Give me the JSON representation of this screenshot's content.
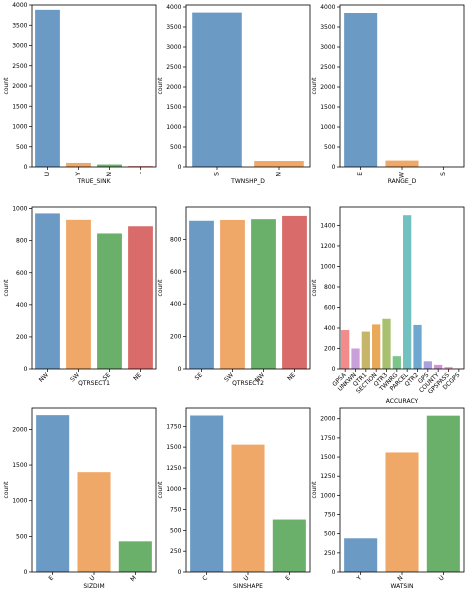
{
  "chart_data": [
    {
      "type": "bar",
      "categories": [
        "U",
        "Y",
        "N",
        "-"
      ],
      "values": [
        3880,
        100,
        60,
        20
      ],
      "xlabel": "TRUE_SINK",
      "ylabel": "count",
      "ylim": [
        0,
        4000
      ],
      "yticks": [
        0,
        500,
        1000,
        1500,
        2000,
        2500,
        3000,
        3500,
        4000
      ],
      "colors": [
        "#6b9ac4",
        "#f0a868",
        "#6aaf6a",
        "#d96b6b"
      ]
    },
    {
      "type": "bar",
      "categories": [
        "S",
        "N"
      ],
      "values": [
        3860,
        150
      ],
      "xlabel": "TWNSHP_D",
      "ylabel": "count",
      "ylim": [
        0,
        4050
      ],
      "yticks": [
        0,
        500,
        1000,
        1500,
        2000,
        2500,
        3000,
        3500,
        4000
      ],
      "colors": [
        "#6b9ac4",
        "#f0a868"
      ]
    },
    {
      "type": "bar",
      "categories": [
        "E",
        "W",
        "S"
      ],
      "values": [
        3850,
        160,
        3
      ],
      "xlabel": "RANGE_D",
      "ylabel": "count",
      "ylim": [
        0,
        4050
      ],
      "yticks": [
        0,
        500,
        1000,
        1500,
        2000,
        2500,
        3000,
        3500,
        4000
      ],
      "colors": [
        "#6b9ac4",
        "#f0a868",
        "#6aaf6a"
      ]
    },
    {
      "type": "bar",
      "categories": [
        "NW",
        "SW",
        "SE",
        "NE"
      ],
      "values": [
        970,
        930,
        845,
        890
      ],
      "xlabel": "QTRSECT1",
      "ylabel": "count",
      "ylim": [
        0,
        1010
      ],
      "yticks": [
        0,
        200,
        400,
        600,
        800,
        1000
      ],
      "colors": [
        "#6b9ac4",
        "#f0a868",
        "#6aaf6a",
        "#d96b6b"
      ]
    },
    {
      "type": "bar",
      "categories": [
        "SE",
        "SW",
        "NW",
        "NE"
      ],
      "values": [
        915,
        920,
        925,
        945
      ],
      "xlabel": "QTRSECT2",
      "ylabel": "count",
      "ylim": [
        0,
        1000
      ],
      "yticks": [
        0,
        200,
        400,
        600,
        800
      ],
      "colors": [
        "#6b9ac4",
        "#f0a868",
        "#6aaf6a",
        "#d96b6b"
      ]
    },
    {
      "type": "bar",
      "categories": [
        "GPSA",
        "UNKWN",
        "QTR1",
        "SECTION",
        "QTR3",
        "TWNRG",
        "PARCEL",
        "QTR2",
        "GPS",
        "COUNTY",
        "GPSPASS",
        "DCGPS"
      ],
      "values": [
        380,
        200,
        365,
        435,
        490,
        125,
        1500,
        430,
        75,
        40,
        20,
        5
      ],
      "xlabel": "ACCURACY",
      "ylabel": "count",
      "ylim": [
        0,
        1580
      ],
      "yticks": [
        0,
        200,
        400,
        600,
        800,
        1000,
        1200,
        1400
      ],
      "colors": [
        "#f28c8c",
        "#c9a0d9",
        "#c7b66a",
        "#e8a95a",
        "#a8c070",
        "#7cc48a",
        "#72c0c0",
        "#6ea8d0",
        "#a9a0e0",
        "#d38fd8",
        "#f2a0c8",
        "#f7b8b8"
      ]
    },
    {
      "type": "bar",
      "categories": [
        "E",
        "U",
        "M"
      ],
      "values": [
        2200,
        1400,
        430
      ],
      "xlabel": "SIZDIM",
      "ylabel": "count",
      "ylim": [
        0,
        2300
      ],
      "yticks": [
        0,
        500,
        1000,
        1500,
        2000
      ],
      "colors": [
        "#6b9ac4",
        "#f0a868",
        "#6aaf6a"
      ]
    },
    {
      "type": "bar",
      "categories": [
        "C",
        "U",
        "E"
      ],
      "values": [
        1880,
        1530,
        630
      ],
      "xlabel": "SINSHAPE",
      "ylabel": "count",
      "ylim": [
        0,
        1970
      ],
      "yticks": [
        0,
        250,
        500,
        750,
        1000,
        1250,
        1500,
        1750
      ],
      "colors": [
        "#6b9ac4",
        "#f0a868",
        "#6aaf6a"
      ]
    },
    {
      "type": "bar",
      "categories": [
        "Y",
        "N",
        "U"
      ],
      "values": [
        440,
        1560,
        2040
      ],
      "xlabel": "WATSIN",
      "ylabel": "count",
      "ylim": [
        0,
        2140
      ],
      "yticks": [
        0,
        250,
        500,
        750,
        1000,
        1250,
        1500,
        1750,
        2000
      ],
      "colors": [
        "#6b9ac4",
        "#f0a868",
        "#6aaf6a"
      ]
    }
  ]
}
